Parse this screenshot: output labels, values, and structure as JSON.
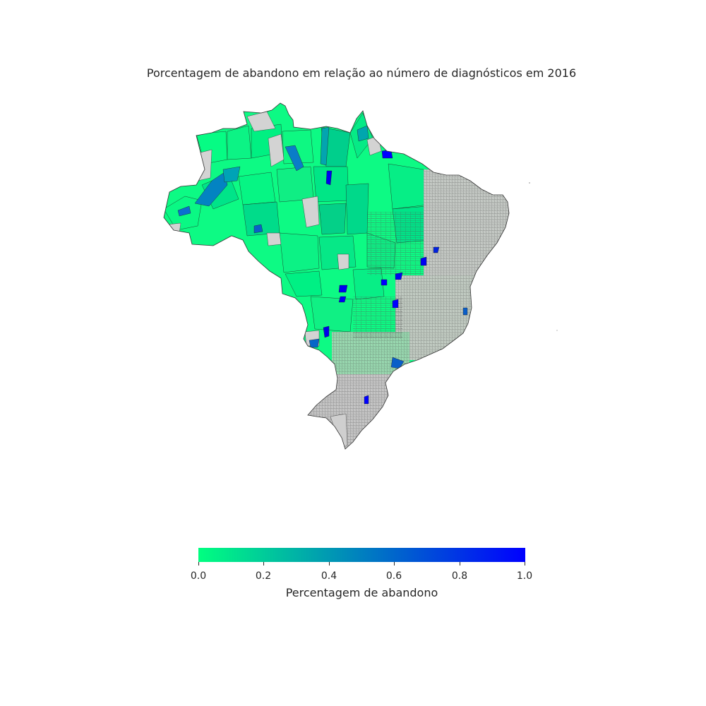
{
  "title": "Porcentagem de abandono em relação ao número de diagnósticos em 2016",
  "map": {
    "region": "Brazil",
    "unit": "municipality",
    "no_data_color": "#d3d3d3",
    "border_color": "#333333"
  },
  "colorbar": {
    "label": "Percentagem de abandono",
    "colormap": "winter_r",
    "color_min": "#00ff80",
    "color_max": "#0000ff",
    "range": [
      0.0,
      1.0
    ],
    "orientation": "horizontal",
    "ticks": [
      "0.0",
      "0.2",
      "0.4",
      "0.6",
      "0.8",
      "1.0"
    ]
  }
}
